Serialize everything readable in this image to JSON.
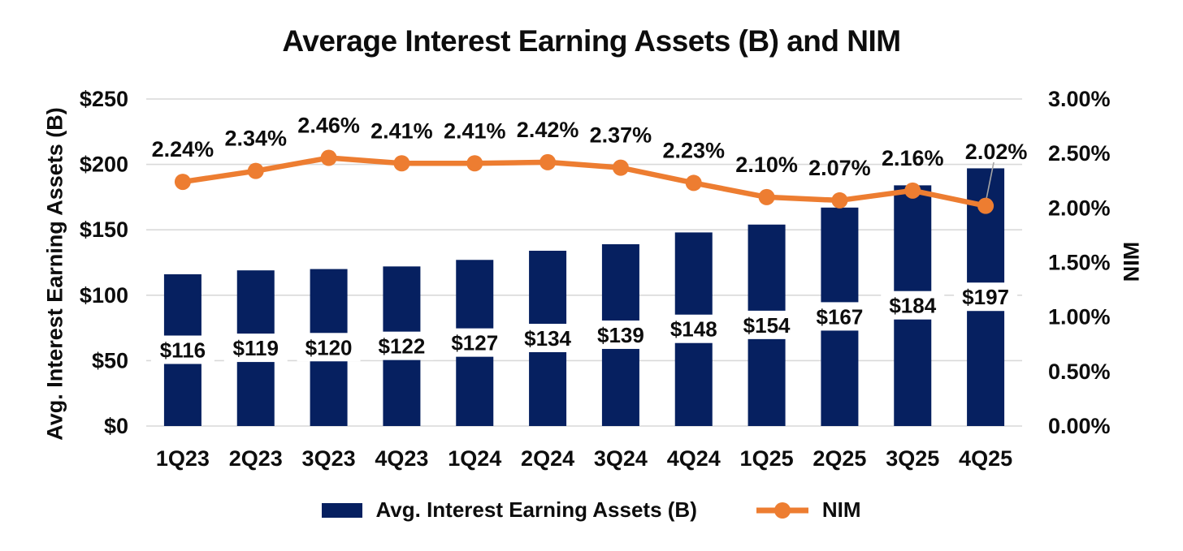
{
  "chart_data": {
    "type": "combo",
    "title": "Average Interest Earning Assets (B) and NIM",
    "categories": [
      "1Q23",
      "2Q23",
      "3Q23",
      "4Q23",
      "1Q24",
      "2Q24",
      "3Q24",
      "4Q24",
      "1Q25",
      "2Q25",
      "3Q25",
      "4Q25"
    ],
    "series": [
      {
        "name": "Avg. Interest Earning Assets (B)",
        "type": "bar",
        "axis": "left",
        "values": [
          116,
          119,
          120,
          122,
          127,
          134,
          139,
          148,
          154,
          167,
          184,
          197
        ],
        "labels": [
          "$116",
          "$119",
          "$120",
          "$122",
          "$127",
          "$134",
          "$139",
          "$148",
          "$154",
          "$167",
          "$184",
          "$197"
        ],
        "color": "#062060"
      },
      {
        "name": "NIM",
        "type": "line",
        "axis": "right",
        "values": [
          2.24,
          2.34,
          2.46,
          2.41,
          2.41,
          2.42,
          2.37,
          2.23,
          2.1,
          2.07,
          2.16,
          2.02
        ],
        "labels": [
          "2.24%",
          "2.34%",
          "2.46%",
          "2.41%",
          "2.41%",
          "2.42%",
          "2.37%",
          "2.23%",
          "2.10%",
          "2.07%",
          "2.16%",
          "2.02%"
        ],
        "color": "#ED7D31"
      }
    ],
    "axes": {
      "left": {
        "title": "Avg. Interest Earning Assets (B)",
        "min": 0,
        "max": 250,
        "ticks": [
          "$0",
          "$50",
          "$100",
          "$150",
          "$200",
          "$250"
        ]
      },
      "right": {
        "title": "NIM",
        "min": 0,
        "max": 3,
        "ticks": [
          "0.00%",
          "0.50%",
          "1.00%",
          "1.50%",
          "2.00%",
          "2.50%",
          "3.00%"
        ]
      }
    },
    "grid": "horizontal",
    "legend_position": "bottom",
    "colors": {
      "bar": "#062060",
      "line": "#ED7D31",
      "gridline": "#D9D9D9",
      "text": "#0d0d0d",
      "label_background": "#FFFFFF",
      "leader_line": "#A6A6A6"
    }
  }
}
